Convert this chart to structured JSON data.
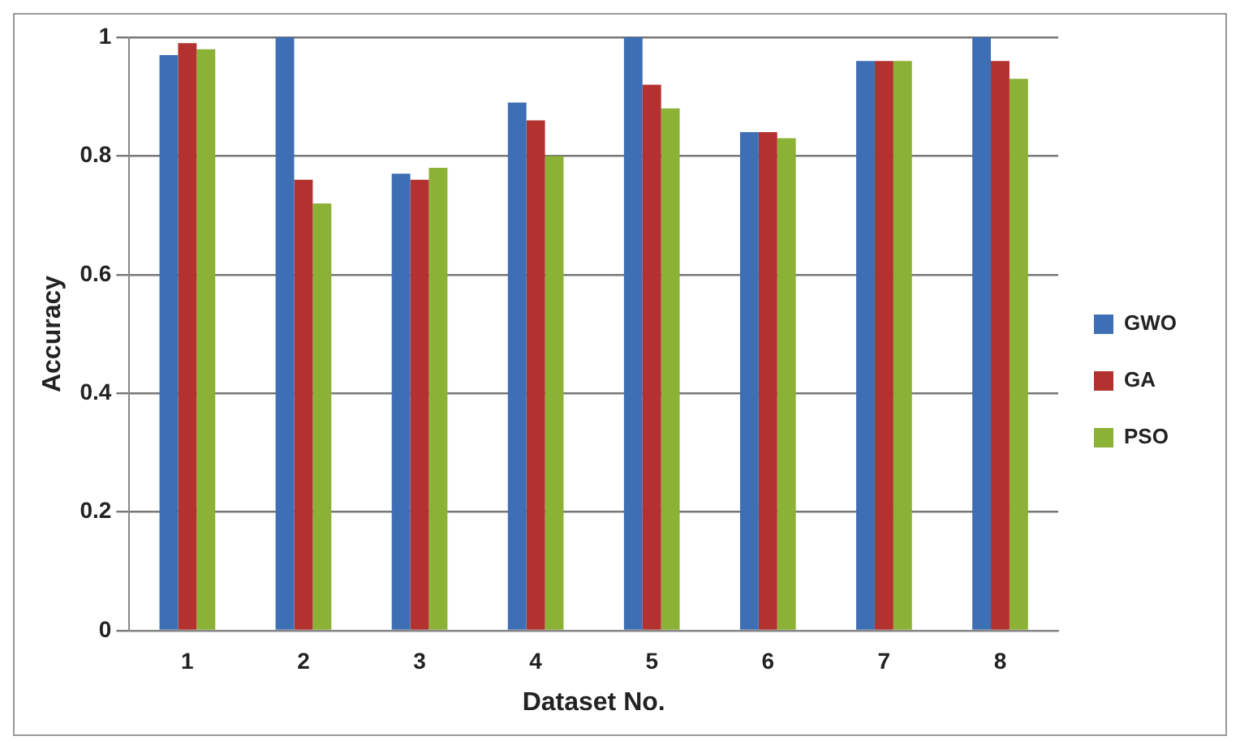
{
  "chart_data": {
    "type": "bar",
    "xlabel": "Dataset No.",
    "ylabel": "Accuracy",
    "categories": [
      "1",
      "2",
      "3",
      "4",
      "5",
      "6",
      "7",
      "8"
    ],
    "series": [
      {
        "name": "GWO",
        "color": "#3e6eb4",
        "values": [
          0.97,
          1.0,
          0.77,
          0.89,
          1.0,
          0.84,
          0.96,
          1.0
        ]
      },
      {
        "name": "GA",
        "color": "#b3322f",
        "values": [
          0.99,
          0.76,
          0.76,
          0.86,
          0.92,
          0.84,
          0.96,
          0.96
        ]
      },
      {
        "name": "PSO",
        "color": "#8bb135",
        "values": [
          0.98,
          0.72,
          0.78,
          0.8,
          0.88,
          0.83,
          0.96,
          0.93
        ]
      }
    ],
    "ylim": [
      0,
      1
    ],
    "yticks": [
      0,
      0.2,
      0.4,
      0.6,
      0.8,
      1
    ],
    "grid": "y",
    "legend": "right"
  }
}
